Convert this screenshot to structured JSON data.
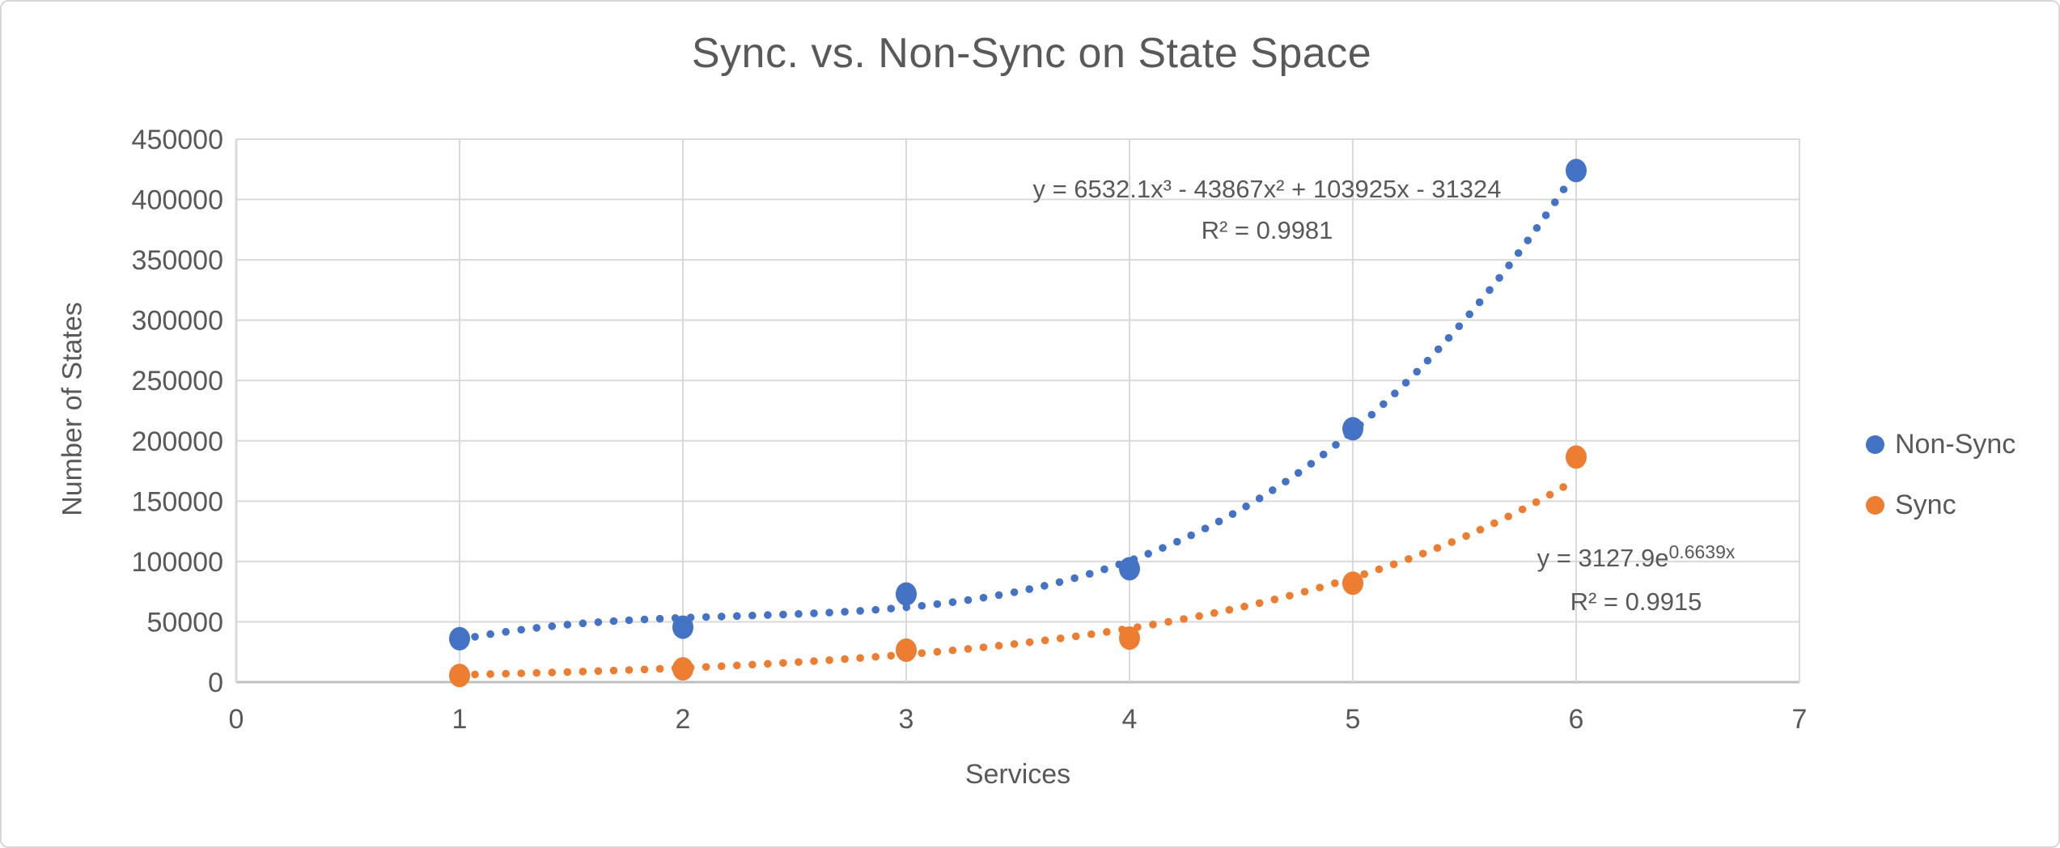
{
  "chart": {
    "title": "Sync. vs. Non-Sync on State Space",
    "x_axis": {
      "title": "Services",
      "tick_labels": [
        "0",
        "1",
        "2",
        "3",
        "4",
        "5",
        "6",
        "7"
      ],
      "min": 0,
      "max": 7
    },
    "y_axis": {
      "title": "Number of States",
      "tick_labels": [
        "0",
        "50000",
        "100000",
        "150000",
        "200000",
        "250000",
        "300000",
        "350000",
        "400000",
        "450000"
      ],
      "min": 0,
      "max": 450000
    },
    "legend": [
      {
        "label": "Non-Sync",
        "color": "#4472C4"
      },
      {
        "label": "Sync",
        "color": "#ED7D31"
      }
    ],
    "annotations": {
      "nonsync_equation": {
        "line1": "y = 6532.1x³ - 43867x² + 103925x - 31324",
        "line2": "R² = 0.9981"
      },
      "sync_equation": {
        "base": "y = 3127.9e",
        "exponent": "0.6639x",
        "line2": "R² = 0.9915"
      }
    }
  },
  "colors": {
    "series_nonsync": "#4472C4",
    "series_sync": "#ED7D31",
    "gridline": "#D9D9D9",
    "axis_line": "#BFBFBF",
    "text": "#595959"
  },
  "chart_data": {
    "type": "scatter",
    "title": "Sync. vs. Non-Sync on State Space",
    "xlabel": "Services",
    "ylabel": "Number of States",
    "xlim": [
      0,
      7
    ],
    "ylim": [
      0,
      450000
    ],
    "x_tick_step": 1,
    "y_tick_step": 50000,
    "grid": true,
    "legend_position": "right",
    "x": [
      1,
      2,
      3,
      4,
      5,
      6
    ],
    "series": [
      {
        "name": "Non-Sync",
        "color": "#4472C4",
        "values": [
          36000,
          45500,
          73000,
          94000,
          210000,
          424000
        ],
        "trendline": {
          "type": "polynomial",
          "style": "dotted",
          "equation": "y = 6532.1x³ - 43867x² + 103925x - 31324",
          "r_squared": 0.9981,
          "coefficients": {
            "a3": 6532.1,
            "a2": -43867,
            "a1": 103925,
            "a0": -31324
          },
          "range": [
            1,
            6
          ]
        }
      },
      {
        "name": "Sync",
        "color": "#ED7D31",
        "values": [
          5500,
          11000,
          26500,
          36500,
          82000,
          186500
        ],
        "trendline": {
          "type": "exponential",
          "style": "dotted",
          "equation": "y = 3127.9e^(0.6639x)",
          "r_squared": 0.9915,
          "coefficients": {
            "a": 3127.9,
            "b": 0.6639
          },
          "range": [
            1,
            6
          ]
        }
      }
    ]
  }
}
